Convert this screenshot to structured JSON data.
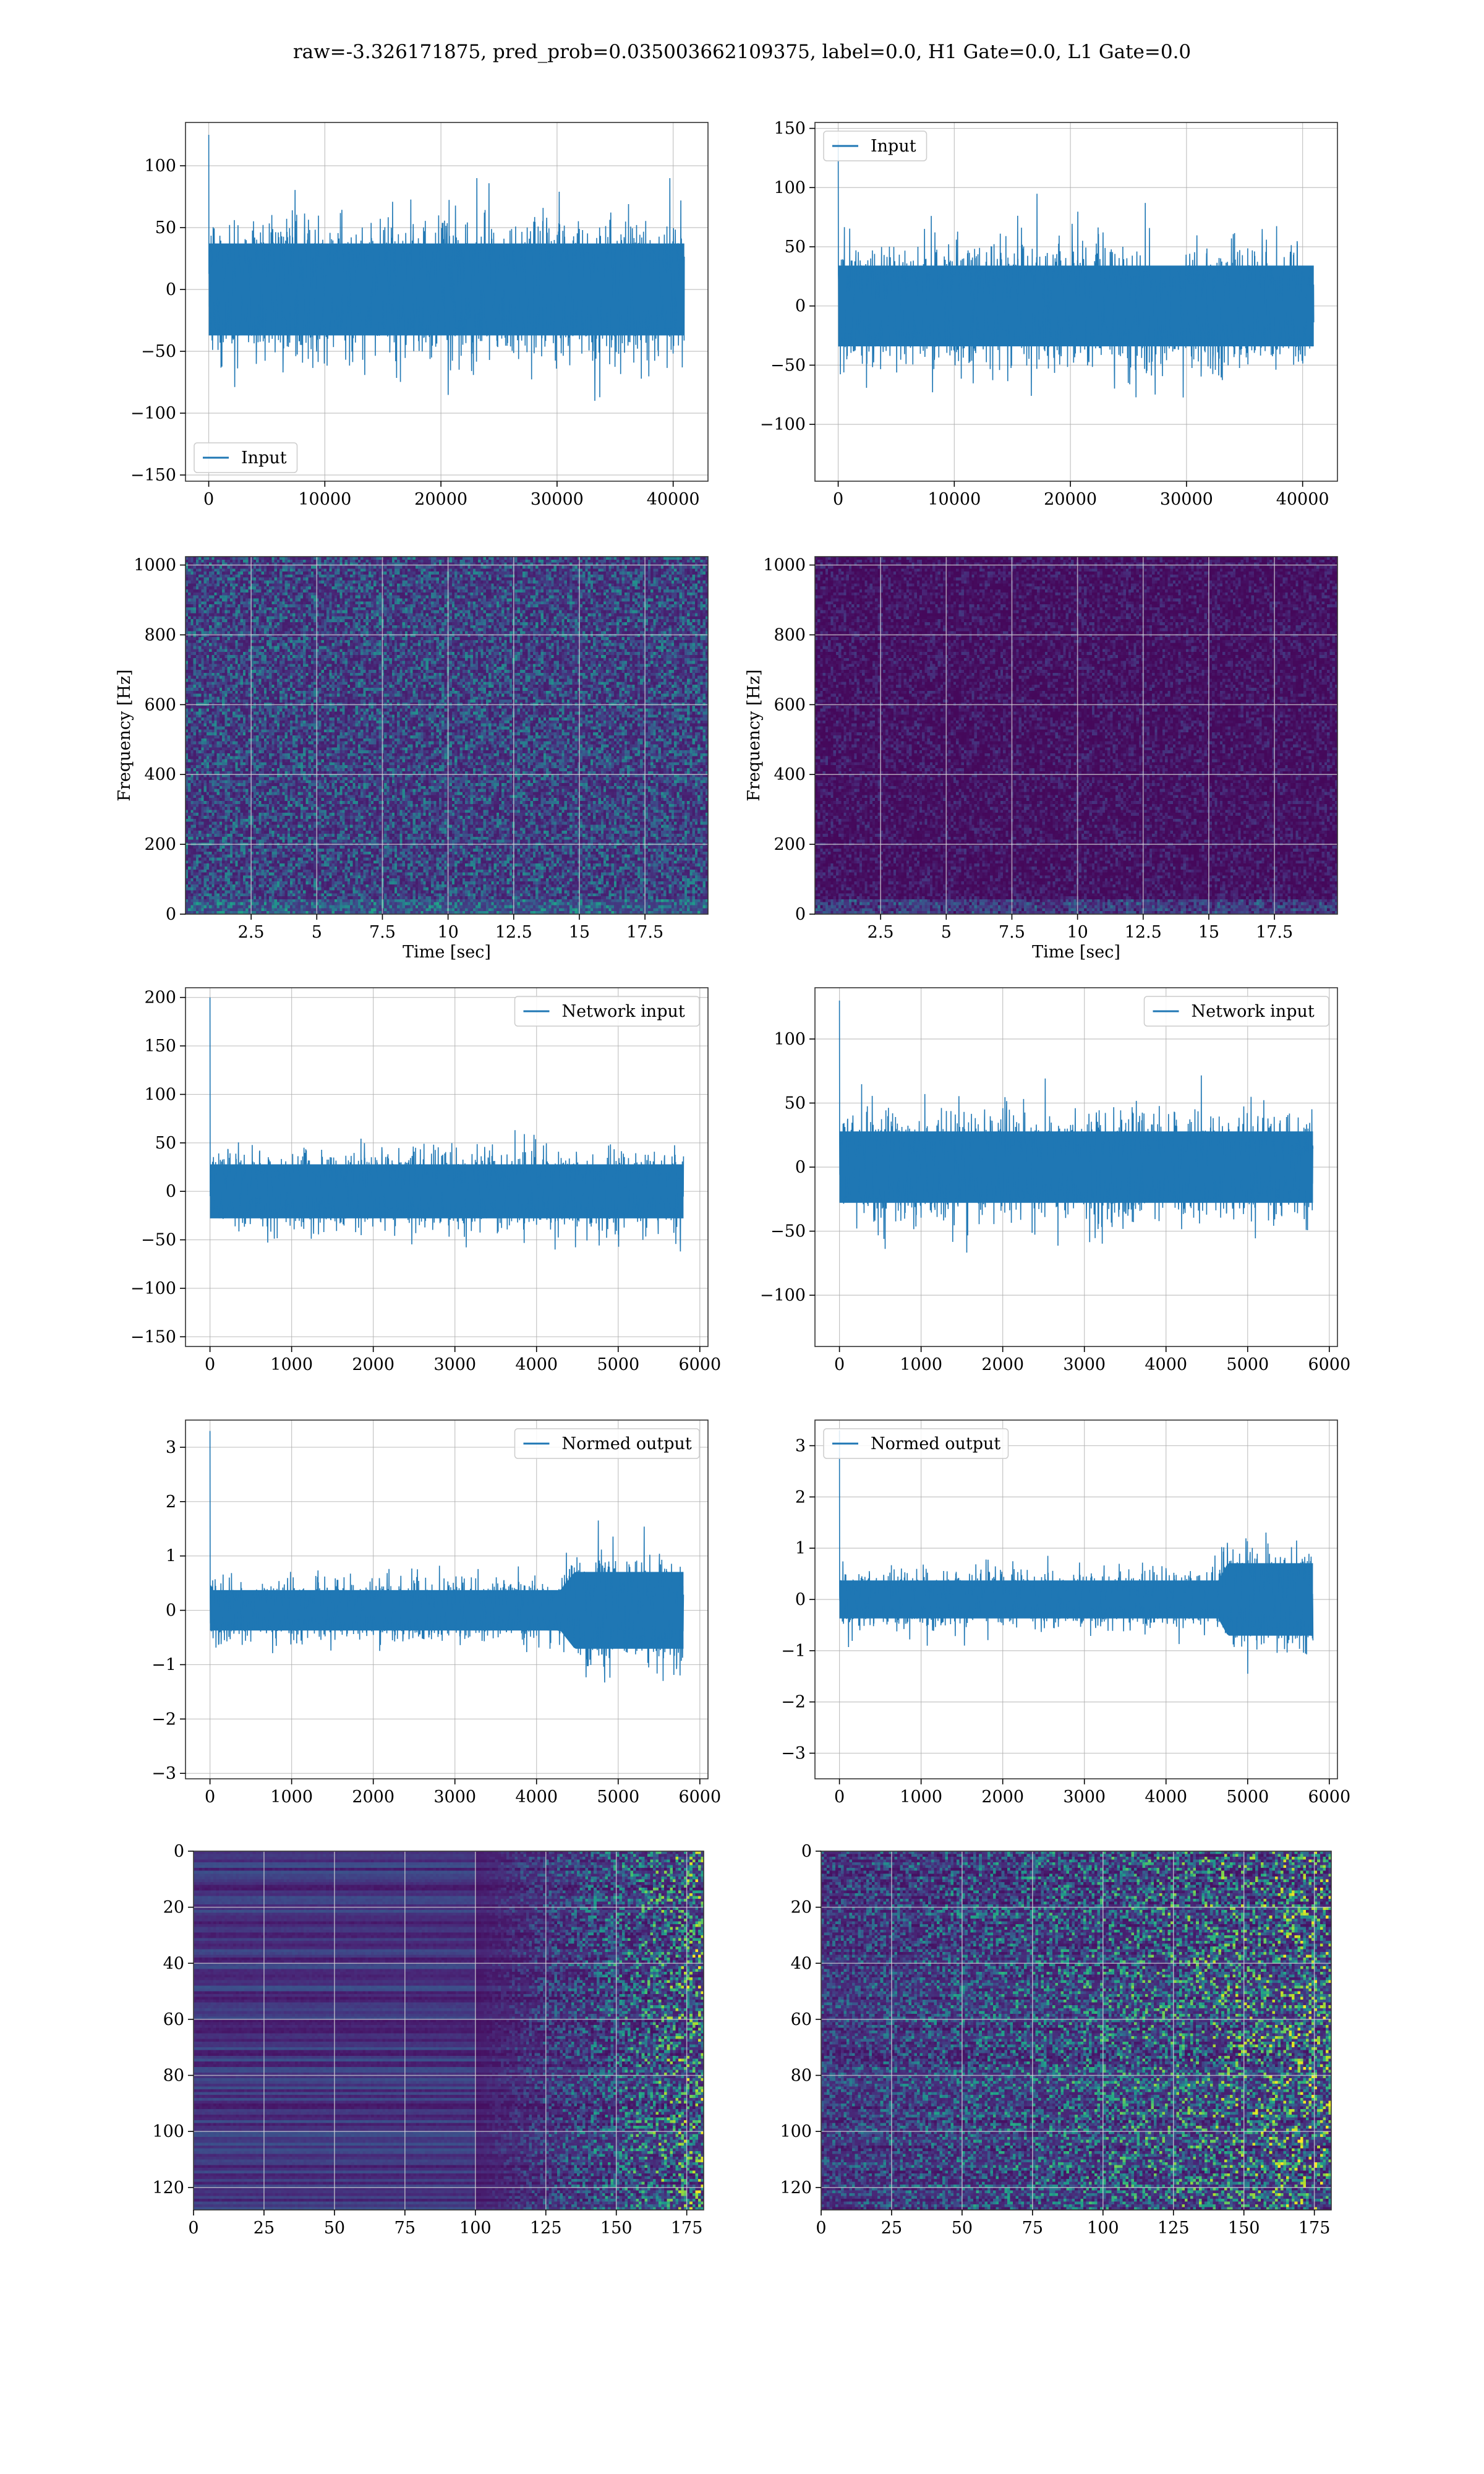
{
  "suptitle": "raw=-3.326171875, pred_prob=0.035003662109375, label=0.0, H1 Gate=0.0, L1 Gate=0.0",
  "colors": {
    "line": "#1f77b4",
    "grid": "#b0b0b0",
    "viridis_low": "#440154",
    "viridis_mid": "#21918c",
    "viridis_high": "#fde725"
  },
  "chart_data": [
    {
      "type": "line",
      "legend": [
        "Input"
      ],
      "legend_loc": "lower-left",
      "xlim": [
        -2000,
        43000
      ],
      "ylim": [
        -155,
        135
      ],
      "xticks": [
        0,
        10000,
        20000,
        30000,
        40000
      ],
      "yticks": [
        -150,
        -100,
        -50,
        0,
        50,
        100
      ],
      "x_range": [
        0,
        40960
      ],
      "amplitude_core": 60,
      "amplitude_peak": 125,
      "envelope": [
        [
          0,
          1.0
        ],
        [
          1,
          1.0
        ]
      ],
      "grid": true
    },
    {
      "type": "line",
      "legend": [
        "Input"
      ],
      "legend_loc": "upper-left",
      "xlim": [
        -2000,
        43000
      ],
      "ylim": [
        -148,
        155
      ],
      "xticks": [
        0,
        10000,
        20000,
        30000,
        40000
      ],
      "yticks": [
        -100,
        -50,
        0,
        50,
        100,
        150
      ],
      "x_range": [
        0,
        40960
      ],
      "amplitude_core": 55,
      "amplitude_peak": 140,
      "envelope": [
        [
          0,
          1.0
        ],
        [
          1,
          1.0
        ]
      ],
      "grid": true
    },
    {
      "type": "heatmap",
      "subtype": "spectrogram",
      "xlabel": "Time [sec]",
      "ylabel": "Frequency [Hz]",
      "xlim": [
        0,
        19.9
      ],
      "ylim": [
        0,
        1024
      ],
      "xticks": [
        2.5,
        5.0,
        7.5,
        10.0,
        12.5,
        15.0,
        17.5
      ],
      "yticks": [
        0,
        200,
        400,
        600,
        800,
        1000
      ],
      "colormap": "viridis",
      "grid": true
    },
    {
      "type": "heatmap",
      "subtype": "spectrogram",
      "xlabel": "Time [sec]",
      "ylabel": "Frequency [Hz]",
      "xlim": [
        0,
        19.9
      ],
      "ylim": [
        0,
        1024
      ],
      "xticks": [
        2.5,
        5.0,
        7.5,
        10.0,
        12.5,
        15.0,
        17.5
      ],
      "yticks": [
        0,
        200,
        400,
        600,
        800,
        1000
      ],
      "colormap": "viridis",
      "grid": true
    },
    {
      "type": "line",
      "legend": [
        "Network input"
      ],
      "legend_loc": "upper-right",
      "xlim": [
        -300,
        6100
      ],
      "ylim": [
        -160,
        210
      ],
      "xticks": [
        0,
        1000,
        2000,
        3000,
        4000,
        5000,
        6000
      ],
      "yticks": [
        -150,
        -100,
        -50,
        0,
        50,
        100,
        150,
        200
      ],
      "x_range": [
        0,
        5800
      ],
      "amplitude_core": 45,
      "amplitude_peak": 200,
      "envelope": [
        [
          0,
          1.0
        ],
        [
          1,
          1.0
        ]
      ],
      "grid": true
    },
    {
      "type": "line",
      "legend": [
        "Network input"
      ],
      "legend_loc": "upper-right",
      "xlim": [
        -300,
        6100
      ],
      "ylim": [
        -140,
        140
      ],
      "xticks": [
        0,
        1000,
        2000,
        3000,
        4000,
        5000,
        6000
      ],
      "yticks": [
        -100,
        -50,
        0,
        50,
        100
      ],
      "x_range": [
        0,
        5800
      ],
      "amplitude_core": 45,
      "amplitude_peak": 130,
      "envelope": [
        [
          0,
          1.0
        ],
        [
          1,
          1.0
        ]
      ],
      "grid": true
    },
    {
      "type": "line",
      "legend": [
        "Normed output"
      ],
      "legend_loc": "upper-right",
      "xlim": [
        -300,
        6100
      ],
      "ylim": [
        -3.1,
        3.5
      ],
      "xticks": [
        0,
        1000,
        2000,
        3000,
        4000,
        5000,
        6000
      ],
      "yticks": [
        -3,
        -2,
        -1,
        0,
        1,
        2,
        3
      ],
      "x_range": [
        0,
        5800
      ],
      "amplitude_core": 0.6,
      "amplitude_peak": 3.3,
      "envelope": [
        [
          0,
          1.0
        ],
        [
          0.74,
          1.0
        ],
        [
          0.77,
          1.9
        ],
        [
          1,
          1.9
        ]
      ],
      "grid": true
    },
    {
      "type": "line",
      "legend": [
        "Normed output"
      ],
      "legend_loc": "upper-left",
      "xlim": [
        -300,
        6100
      ],
      "ylim": [
        -3.5,
        3.5
      ],
      "xticks": [
        0,
        1000,
        2000,
        3000,
        4000,
        5000,
        6000
      ],
      "yticks": [
        -3,
        -2,
        -1,
        0,
        1,
        2,
        3
      ],
      "x_range": [
        0,
        5800
      ],
      "amplitude_core": 0.6,
      "amplitude_peak": 3.3,
      "envelope": [
        [
          0,
          1.0
        ],
        [
          0.8,
          1.0
        ],
        [
          0.82,
          1.9
        ],
        [
          1,
          1.9
        ]
      ],
      "grid": true
    },
    {
      "type": "heatmap",
      "subtype": "feature-map",
      "xlim": [
        0,
        181
      ],
      "ylim": [
        128,
        0
      ],
      "xticks": [
        0,
        25,
        50,
        75,
        100,
        125,
        150,
        175
      ],
      "yticks": [
        0,
        20,
        40,
        60,
        80,
        100,
        120
      ],
      "colormap": "viridis",
      "grid": true,
      "active_from_col": 100
    },
    {
      "type": "heatmap",
      "subtype": "feature-map",
      "xlim": [
        0,
        181
      ],
      "ylim": [
        128,
        0
      ],
      "xticks": [
        0,
        25,
        50,
        75,
        100,
        125,
        150,
        175
      ],
      "yticks": [
        0,
        20,
        40,
        60,
        80,
        100,
        120
      ],
      "colormap": "viridis",
      "grid": true,
      "active_from_col": 0
    }
  ]
}
